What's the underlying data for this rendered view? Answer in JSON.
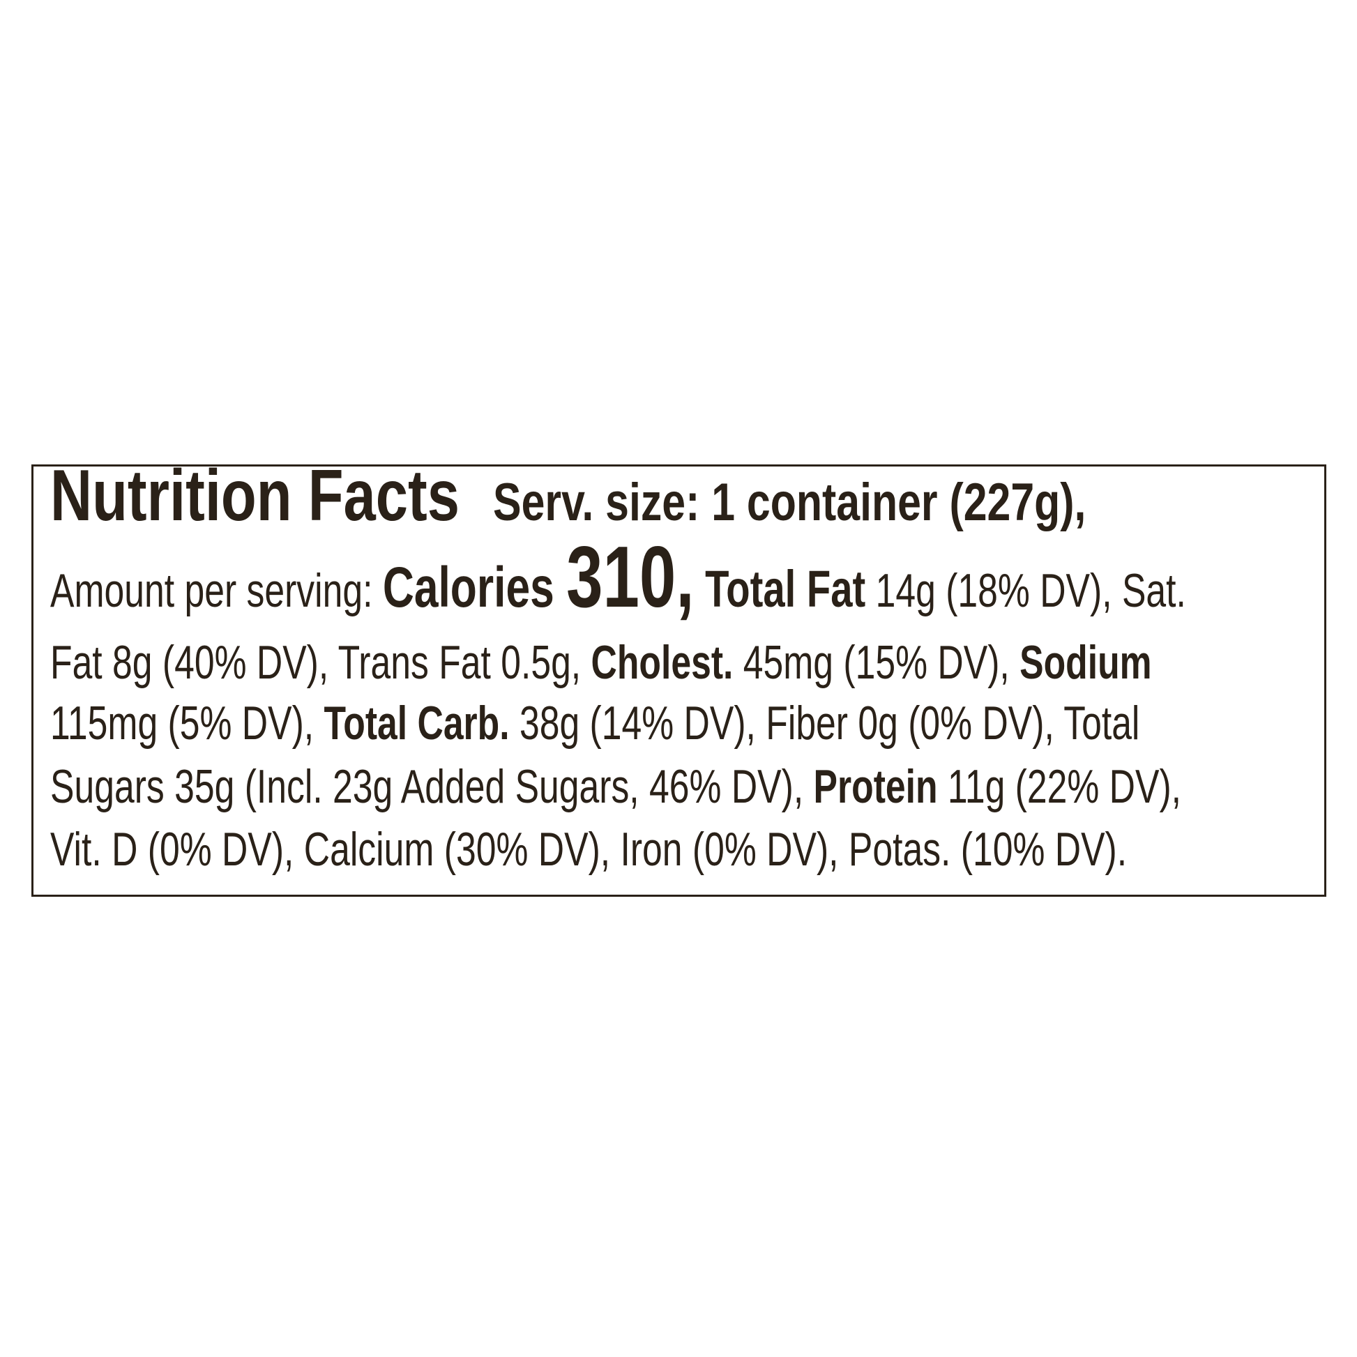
{
  "colors": {
    "text": "#2a2118",
    "border": "#2a2118",
    "background": "#ffffff"
  },
  "label": {
    "title": "Nutrition Facts",
    "serving_size": "Serv. size: 1 container (227g),",
    "line2": {
      "amount": "Amount per serving: ",
      "calories_label": "Calories ",
      "calories_value": "310,",
      "total_fat_label": " Total Fat",
      "total_fat_value": " 14g (18% DV), Sat."
    },
    "line3": {
      "a": "Fat 8g (40% DV), Trans Fat 0.5g, ",
      "cholest_label": "Cholest.",
      "b": " 45mg (15% DV), ",
      "sodium_label": "Sodium"
    },
    "line4": {
      "a": "115mg (5% DV), ",
      "carb_label": "Total Carb.",
      "b": " 38g (14% DV), Fiber 0g (0% DV), Total"
    },
    "line5": {
      "a": "Sugars 35g (Incl. 23g Added Sugars, 46% DV), ",
      "protein_label": "Protein",
      "b": " 11g (22% DV),"
    },
    "line6": "Vit. D (0% DV), Calcium (30% DV), Iron (0% DV), Potas. (10% DV)."
  }
}
